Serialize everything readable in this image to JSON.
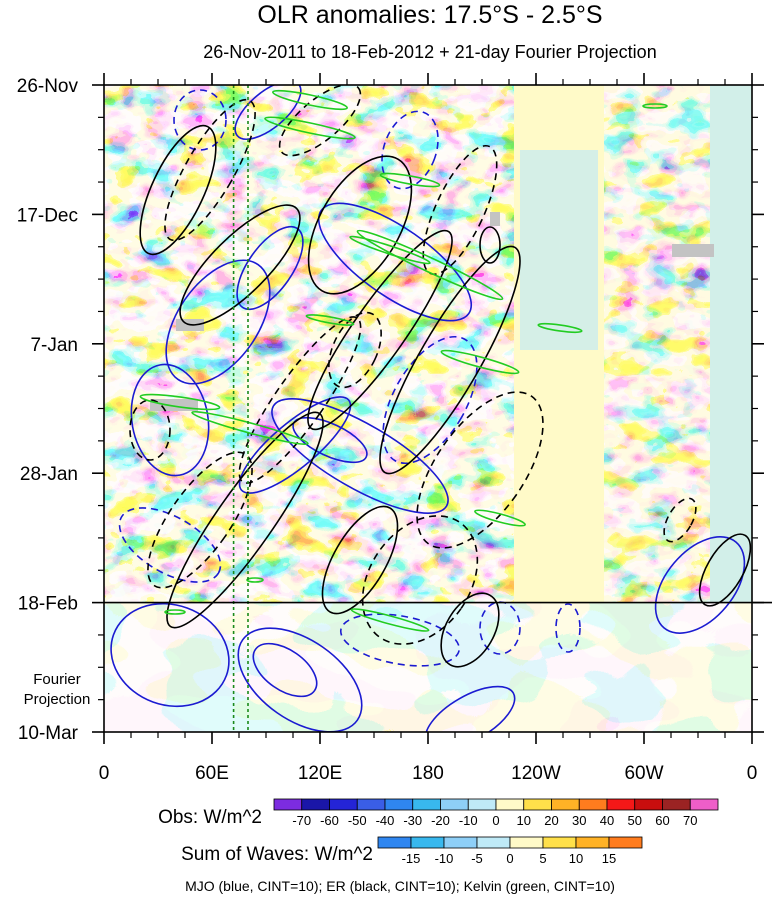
{
  "chart_data": {
    "type": "heatmap",
    "title": "OLR anomalies: 17.5°S - 2.5°S",
    "subtitle": "26-Nov-2011 to 18-Feb-2012 + 21-day Fourier Projection",
    "y_ticks": [
      "26-Nov",
      "17-Dec",
      "7-Jan",
      "28-Jan",
      "18-Feb",
      "10-Mar"
    ],
    "y_minor_per_major": 3,
    "x_ticks": [
      "0",
      "60E",
      "120E",
      "180",
      "120W",
      "60W",
      "0"
    ],
    "x_range_deg": [
      0,
      360
    ],
    "x_tick_deg": [
      0,
      60,
      120,
      180,
      240,
      300,
      360
    ],
    "days_total": 105,
    "observed_days": 84,
    "projection_label": "Fourier Projection",
    "projection_line_label": "18-Feb",
    "obs_colorbar": {
      "label": "Obs: W/m^2",
      "levels": [
        "-70",
        "-60",
        "-50",
        "-40",
        "-30",
        "-20",
        "-10",
        "0",
        "10",
        "20",
        "30",
        "40",
        "50",
        "60",
        "70"
      ],
      "colors": [
        "#7c2ce0",
        "#1a16a8",
        "#2424d6",
        "#3a5ee6",
        "#2f86f0",
        "#38b8ee",
        "#8ecff7",
        "#bfeaf7",
        "#fffac8",
        "#ffe04a",
        "#ffb226",
        "#ff7c1e",
        "#f51818",
        "#c80e0e",
        "#9b2323",
        "#ee5ec8"
      ]
    },
    "waves_colorbar": {
      "label": "Sum of Waves: W/m^2",
      "levels": [
        "-15",
        "-10",
        "-5",
        "0",
        "5",
        "10",
        "15"
      ],
      "colors": [
        "#2f86f0",
        "#38b8ee",
        "#8ecff7",
        "#bfeaf7",
        "#fffac8",
        "#ffe04a",
        "#ffb226",
        "#ff7c1e"
      ]
    },
    "contour_legend": "MJO (blue, CINT=10); ER (black, CINT=10); Kelvin (green, CINT=10)",
    "series": [
      {
        "name": "MJO",
        "color": "#1b1bd1"
      },
      {
        "name": "ER",
        "color": "#000000"
      },
      {
        "name": "Kelvin",
        "color": "#22cc22"
      }
    ],
    "reference_lon_deg": [
      72,
      80
    ],
    "reference_color": "#1a8a1a",
    "grid": false
  }
}
